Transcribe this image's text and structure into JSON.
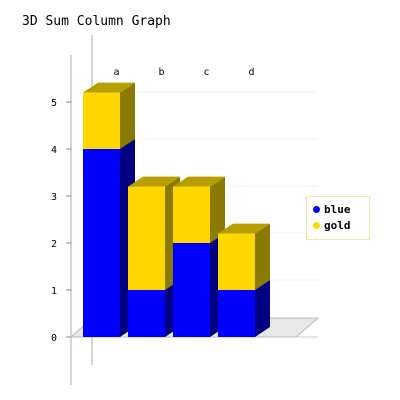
{
  "chart_data": {
    "type": "bar",
    "stacked": true,
    "three_d": true,
    "title": "3D Sum Column Graph",
    "categories": [
      "a",
      "b",
      "c",
      "d"
    ],
    "series": [
      {
        "name": "blue",
        "values": [
          4,
          1,
          2,
          1
        ],
        "color": "#0000ff"
      },
      {
        "name": "gold",
        "values": [
          1.2,
          2.2,
          1.2,
          1.2
        ],
        "color": "#ffd700"
      }
    ],
    "ylim": [
      0,
      5
    ],
    "yticks": [
      "0",
      "1",
      "2",
      "3",
      "4",
      "5"
    ],
    "grid": true,
    "legend_position": "right"
  }
}
